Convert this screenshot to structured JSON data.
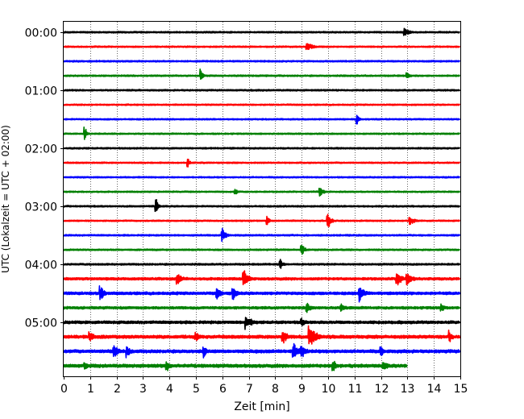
{
  "chart_data": {
    "type": "line",
    "title": "",
    "xlabel": "Zeit  [min]",
    "ylabel": "UTC (Lokalzeit = UTC + 02:00)",
    "xlim": [
      0,
      15
    ],
    "x_ticks": [
      "0",
      "1",
      "2",
      "3",
      "4",
      "5",
      "6",
      "7",
      "8",
      "9",
      "10",
      "11",
      "12",
      "13",
      "14",
      "15"
    ],
    "y_tick_labels": [
      "00:00",
      "01:00",
      "02:00",
      "03:00",
      "04:00",
      "05:00"
    ],
    "row_interval_min": 15,
    "row_count": 24,
    "row_colors": [
      "#000000",
      "#ff0000",
      "#0000ff",
      "#008000"
    ],
    "vertical_grid": "dotted",
    "rows": [
      {
        "label": "00:00",
        "end_min": 15,
        "noise": 0.22,
        "events": [
          {
            "t": 12.9,
            "amp": 2.0,
            "dur": 0.5
          }
        ]
      },
      {
        "label": "00:15",
        "end_min": 15,
        "noise": 0.2,
        "events": [
          {
            "t": 9.2,
            "amp": 2.0,
            "dur": 0.6
          }
        ]
      },
      {
        "label": "00:30",
        "end_min": 15,
        "noise": 0.22,
        "events": []
      },
      {
        "label": "00:45",
        "end_min": 15,
        "noise": 0.22,
        "events": [
          {
            "t": 5.2,
            "amp": 3.2,
            "dur": 0.2
          },
          {
            "t": 13.0,
            "amp": 1.5,
            "dur": 0.3
          }
        ]
      },
      {
        "label": "01:00",
        "end_min": 15,
        "noise": 0.22,
        "events": []
      },
      {
        "label": "01:15",
        "end_min": 15,
        "noise": 0.2,
        "events": []
      },
      {
        "label": "01:30",
        "end_min": 15,
        "noise": 0.2,
        "events": [
          {
            "t": 11.1,
            "amp": 3.0,
            "dur": 0.2
          }
        ]
      },
      {
        "label": "01:45",
        "end_min": 15,
        "noise": 0.2,
        "events": [
          {
            "t": 0.8,
            "amp": 3.5,
            "dur": 0.2
          }
        ]
      },
      {
        "label": "02:00",
        "end_min": 15,
        "noise": 0.22,
        "events": []
      },
      {
        "label": "02:15",
        "end_min": 15,
        "noise": 0.2,
        "events": [
          {
            "t": 4.7,
            "amp": 2.2,
            "dur": 0.2
          }
        ]
      },
      {
        "label": "02:30",
        "end_min": 15,
        "noise": 0.2,
        "events": []
      },
      {
        "label": "02:45",
        "end_min": 15,
        "noise": 0.2,
        "events": [
          {
            "t": 6.5,
            "amp": 1.8,
            "dur": 0.2
          },
          {
            "t": 9.7,
            "amp": 2.8,
            "dur": 0.3
          }
        ]
      },
      {
        "label": "03:00",
        "end_min": 15,
        "noise": 0.22,
        "events": [
          {
            "t": 3.5,
            "amp": 4.5,
            "dur": 0.2
          }
        ]
      },
      {
        "label": "03:15",
        "end_min": 15,
        "noise": 0.2,
        "events": [
          {
            "t": 7.7,
            "amp": 3.0,
            "dur": 0.2
          },
          {
            "t": 10.0,
            "amp": 4.0,
            "dur": 0.3
          },
          {
            "t": 13.1,
            "amp": 2.0,
            "dur": 0.5
          }
        ]
      },
      {
        "label": "03:30",
        "end_min": 15,
        "noise": 0.22,
        "events": [
          {
            "t": 6.0,
            "amp": 3.2,
            "dur": 0.4
          }
        ]
      },
      {
        "label": "03:45",
        "end_min": 15,
        "noise": 0.22,
        "events": [
          {
            "t": 9.0,
            "amp": 3.0,
            "dur": 0.3
          }
        ]
      },
      {
        "label": "04:00",
        "end_min": 15,
        "noise": 0.25,
        "events": [
          {
            "t": 8.2,
            "amp": 2.5,
            "dur": 0.3
          }
        ]
      },
      {
        "label": "04:15",
        "end_min": 15,
        "noise": 0.35,
        "events": [
          {
            "t": 4.3,
            "amp": 3.0,
            "dur": 0.5
          },
          {
            "t": 6.8,
            "amp": 4.5,
            "dur": 0.5
          },
          {
            "t": 12.6,
            "amp": 4.0,
            "dur": 0.5
          },
          {
            "t": 13.0,
            "amp": 3.5,
            "dur": 0.5
          }
        ]
      },
      {
        "label": "04:30",
        "end_min": 15,
        "noise": 0.4,
        "events": [
          {
            "t": 1.4,
            "amp": 4.0,
            "dur": 0.4
          },
          {
            "t": 5.8,
            "amp": 3.5,
            "dur": 0.4
          },
          {
            "t": 6.4,
            "amp": 4.0,
            "dur": 0.4
          },
          {
            "t": 11.2,
            "amp": 3.8,
            "dur": 0.5
          }
        ]
      },
      {
        "label": "04:45",
        "end_min": 15,
        "noise": 0.35,
        "events": [
          {
            "t": 9.2,
            "amp": 2.5,
            "dur": 0.5
          },
          {
            "t": 10.5,
            "amp": 2.0,
            "dur": 0.5
          },
          {
            "t": 14.3,
            "amp": 2.0,
            "dur": 0.4
          }
        ]
      },
      {
        "label": "05:00",
        "end_min": 15,
        "noise": 0.4,
        "events": [
          {
            "t": 6.9,
            "amp": 3.5,
            "dur": 0.6
          },
          {
            "t": 9.0,
            "amp": 2.0,
            "dur": 0.5
          }
        ]
      },
      {
        "label": "05:15",
        "end_min": 15,
        "noise": 0.45,
        "events": [
          {
            "t": 1.0,
            "amp": 3.2,
            "dur": 0.4
          },
          {
            "t": 5.0,
            "amp": 2.5,
            "dur": 0.4
          },
          {
            "t": 8.3,
            "amp": 3.0,
            "dur": 0.5
          },
          {
            "t": 9.3,
            "amp": 5.0,
            "dur": 0.8
          },
          {
            "t": 14.6,
            "amp": 3.0,
            "dur": 0.3
          }
        ]
      },
      {
        "label": "05:30",
        "end_min": 15,
        "noise": 0.45,
        "events": [
          {
            "t": 1.9,
            "amp": 3.5,
            "dur": 0.5
          },
          {
            "t": 2.4,
            "amp": 3.0,
            "dur": 0.4
          },
          {
            "t": 5.3,
            "amp": 3.0,
            "dur": 0.3
          },
          {
            "t": 8.7,
            "amp": 4.5,
            "dur": 0.6
          },
          {
            "t": 9.0,
            "amp": 3.5,
            "dur": 0.5
          },
          {
            "t": 12.0,
            "amp": 3.0,
            "dur": 0.3
          }
        ]
      },
      {
        "label": "05:45",
        "end_min": 13.0,
        "noise": 0.45,
        "events": [
          {
            "t": 0.8,
            "amp": 2.0,
            "dur": 0.4
          },
          {
            "t": 3.9,
            "amp": 3.0,
            "dur": 0.3
          },
          {
            "t": 10.2,
            "amp": 3.2,
            "dur": 0.3
          },
          {
            "t": 12.1,
            "amp": 2.5,
            "dur": 0.5
          }
        ]
      }
    ]
  }
}
